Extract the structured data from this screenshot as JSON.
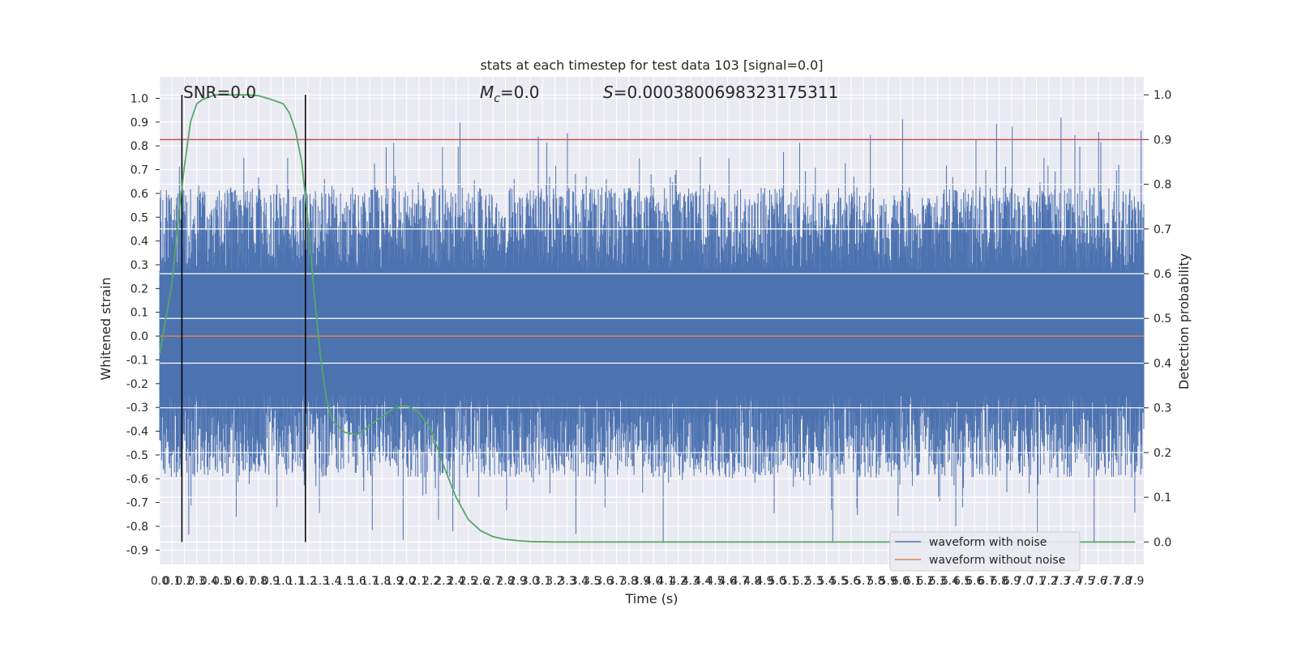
{
  "chart_data": {
    "type": "line",
    "title": "stats at each timestep for test data 103 [signal=0.0]",
    "xlabel": "Time (s)",
    "ylabel_left": "Whitened strain",
    "ylabel_right": "Detection probability",
    "xlim": [
      0.0,
      7.97
    ],
    "ylim_left": [
      -0.96,
      1.09
    ],
    "ylim_right": [
      -0.05,
      1.04
    ],
    "x_ticks": [
      "0.0",
      "0.1",
      "0.2",
      "0.3",
      "0.4",
      "0.5",
      "0.6",
      "0.7",
      "0.8",
      "0.9",
      "1.0",
      "1.1",
      "1.2",
      "1.3",
      "1.4",
      "1.5",
      "1.6",
      "1.7",
      "1.8",
      "1.9",
      "2.0",
      "2.1",
      "2.2",
      "2.3",
      "2.4",
      "2.5",
      "2.6",
      "2.7",
      "2.8",
      "2.9",
      "3.0",
      "3.1",
      "3.2",
      "3.3",
      "3.4",
      "3.5",
      "3.6",
      "3.7",
      "3.8",
      "3.9",
      "4.0",
      "4.1",
      "4.2",
      "4.3",
      "4.4",
      "4.5",
      "4.6",
      "4.7",
      "4.8",
      "4.9",
      "5.0",
      "5.1",
      "5.2",
      "5.3",
      "5.4",
      "5.5",
      "5.6",
      "5.7",
      "5.8",
      "5.9",
      "6.0",
      "6.1",
      "6.2",
      "6.3",
      "6.4",
      "6.5",
      "6.6",
      "6.7",
      "6.8",
      "6.9",
      "7.0",
      "7.1",
      "7.2",
      "7.3",
      "7.4",
      "7.5",
      "7.6",
      "7.7",
      "7.8",
      "7.9"
    ],
    "y_ticks_left": [
      "-0.9",
      "-0.8",
      "-0.7",
      "-0.6",
      "-0.5",
      "-0.4",
      "-0.3",
      "-0.2",
      "-0.1",
      "0.0",
      "0.1",
      "0.2",
      "0.3",
      "0.4",
      "0.5",
      "0.6",
      "0.7",
      "0.8",
      "0.9",
      "1.0"
    ],
    "y_ticks_right": [
      "0.0",
      "0.1",
      "0.2",
      "0.3",
      "0.4",
      "0.5",
      "0.6",
      "0.7",
      "0.8",
      "0.9",
      "1.0"
    ],
    "annotations": {
      "snr": "SNR=0.0",
      "mc_symbol": "M",
      "mc_sub": "c",
      "mc_value": "=0.0",
      "s_symbol": "S",
      "s_value": "=0.0003800698323175311"
    },
    "series": [
      {
        "name": "waveform with noise",
        "color": "#4c72b0",
        "axis": "left",
        "envelope_typical": [
          -0.42,
          0.45
        ]
      },
      {
        "name": "waveform without noise",
        "color": "#dd8452",
        "axis": "left",
        "y_constant": 0.0
      },
      {
        "name": "",
        "color": "#55a868",
        "axis": "right",
        "x": [
          0.0,
          0.1,
          0.15,
          0.2,
          0.25,
          0.3,
          0.35,
          0.4,
          0.45,
          0.5,
          0.6,
          0.7,
          0.8,
          0.9,
          1.0,
          1.05,
          1.1,
          1.15,
          1.2,
          1.25,
          1.3,
          1.35,
          1.4,
          1.5,
          1.6,
          1.7,
          1.8,
          1.9,
          2.0,
          2.1,
          2.2,
          2.3,
          2.4,
          2.5,
          2.6,
          2.7,
          2.8,
          2.9,
          3.0,
          3.2,
          3.5,
          4.0,
          5.0,
          6.0,
          7.0,
          7.9
        ],
        "y": [
          0.42,
          0.58,
          0.72,
          0.84,
          0.94,
          0.98,
          0.99,
          0.995,
          1.0,
          1.0,
          1.0,
          1.0,
          0.998,
          0.99,
          0.98,
          0.96,
          0.92,
          0.85,
          0.72,
          0.56,
          0.42,
          0.32,
          0.27,
          0.245,
          0.24,
          0.26,
          0.28,
          0.3,
          0.305,
          0.29,
          0.25,
          0.17,
          0.1,
          0.05,
          0.025,
          0.012,
          0.006,
          0.003,
          0.001,
          0.0,
          0.0,
          0.0,
          0.0,
          0.0,
          0.0,
          0.0
        ]
      }
    ],
    "threshold_right": 0.9,
    "threshold_color": "#c44e52",
    "vertical_markers_x": [
      0.18,
      1.18
    ],
    "grid": true,
    "legend_position": "lower-right",
    "background": "#eaeaf2"
  }
}
